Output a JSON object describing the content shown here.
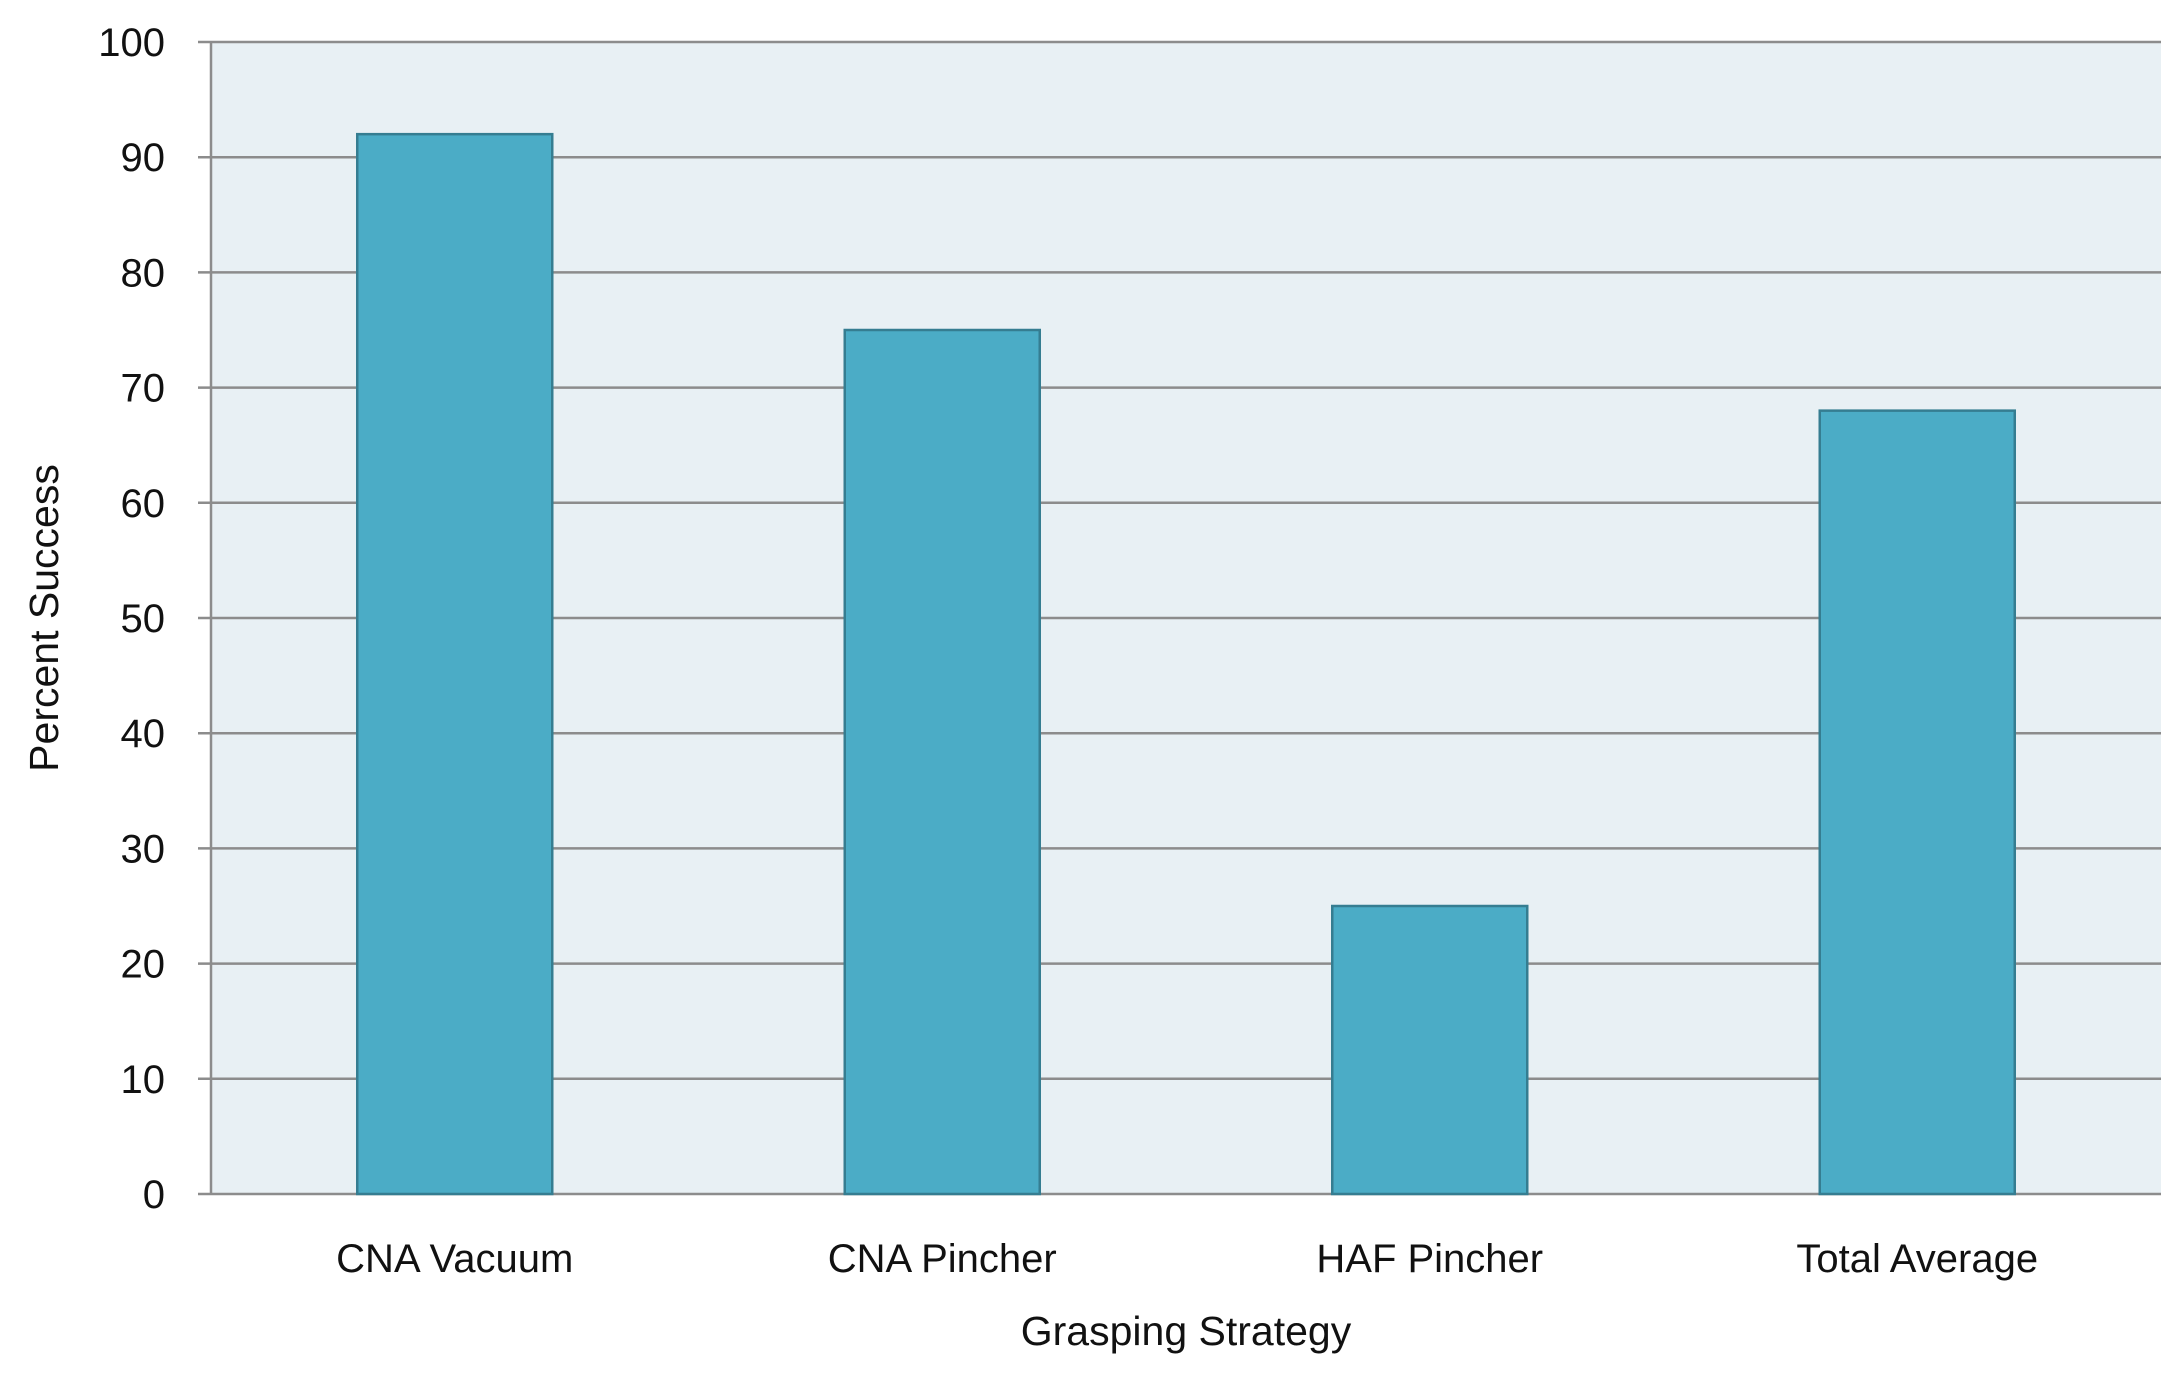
{
  "chart_data": {
    "type": "bar",
    "title": "",
    "xlabel": "Grasping Strategy",
    "ylabel": "Percent Success",
    "categories": [
      "CNA Vacuum",
      "CNA Pincher",
      "HAF Pincher",
      "Total Average"
    ],
    "values": [
      92,
      75,
      25,
      68
    ],
    "ylim": [
      0,
      100
    ],
    "yticks": [
      0,
      10,
      20,
      30,
      40,
      50,
      60,
      70,
      80,
      90,
      100
    ],
    "grid": true,
    "legend": "none",
    "colors": {
      "bar": "#4BACC6",
      "bar_edge": "#357D91",
      "plot_bg": "#E8F0F4",
      "grid": "#8C8C8C"
    }
  }
}
